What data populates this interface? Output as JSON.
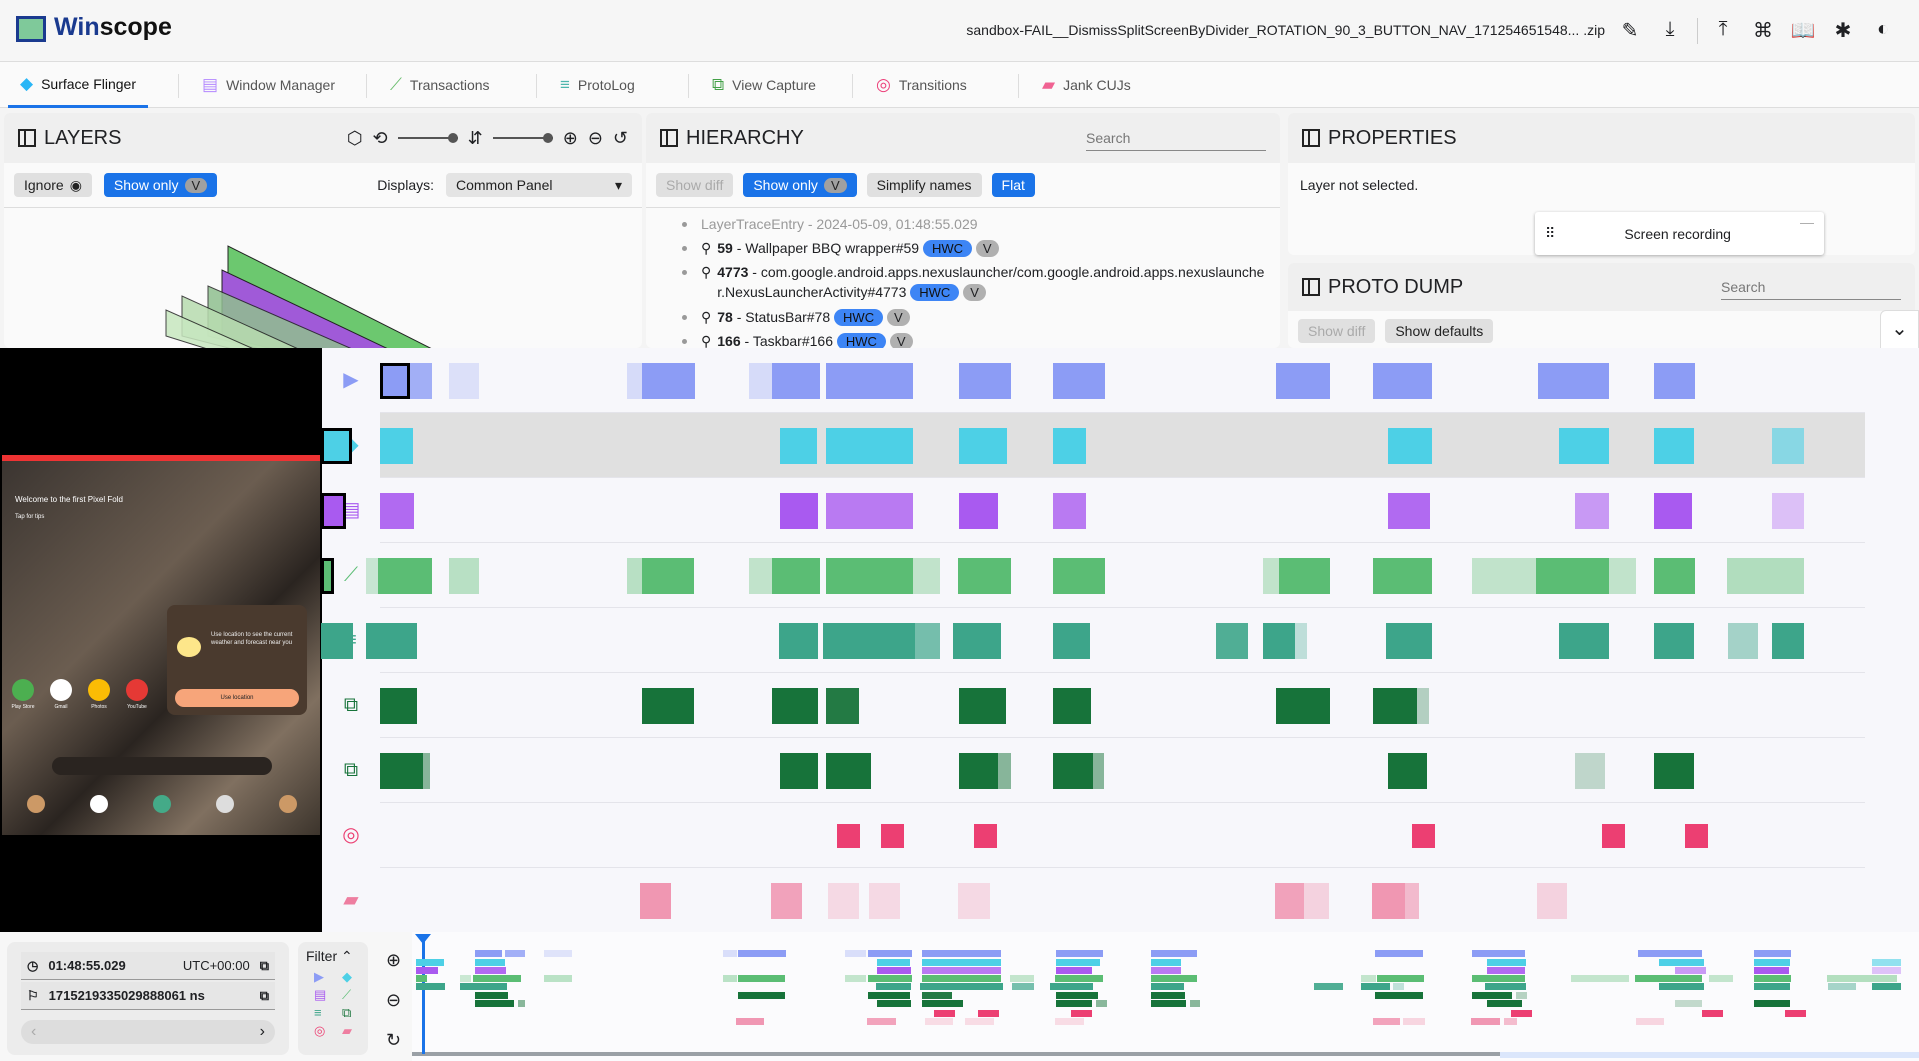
{
  "header": {
    "title_a": "Win",
    "title_b": "scope",
    "filename": "sandbox-FAIL__DismissSplitScreenByDivider_ROTATION_90_3_BUTTON_NAV_171254651548... .zip",
    "icons": [
      "edit-icon",
      "download-icon",
      "upload-icon",
      "shortcut-icon",
      "docs-icon",
      "bug-icon",
      "theme-icon"
    ]
  },
  "tabs": [
    {
      "label": "Surface Flinger",
      "icon": "layers-icon",
      "color": "#29b6f6"
    },
    {
      "label": "Window Manager",
      "icon": "window-icon",
      "color": "#b388ff"
    },
    {
      "label": "Transactions",
      "icon": "chart-icon",
      "color": "#66bb6a"
    },
    {
      "label": "ProtoLog",
      "icon": "list-icon",
      "color": "#4db6ac"
    },
    {
      "label": "View Capture",
      "icon": "copy-icon",
      "color": "#43a047"
    },
    {
      "label": "Transitions",
      "icon": "transitions-icon",
      "color": "#ec407a"
    },
    {
      "label": "Jank CUJs",
      "icon": "label-icon",
      "color": "#f06292"
    }
  ],
  "layers": {
    "title": "LAYERS",
    "ignore": "Ignore",
    "show_only": "Show only",
    "v": "V",
    "displays_label": "Displays:",
    "display_value": "Common Panel"
  },
  "hierarchy": {
    "title": "HIERARCHY",
    "search_placeholder": "Search",
    "show_diff": "Show diff",
    "show_only": "Show only",
    "v": "V",
    "simplify": "Simplify names",
    "flat": "Flat",
    "root": "LayerTraceEntry - 2024-05-09, 01:48:55.029",
    "items": [
      {
        "id": "59",
        "name": "Wallpaper BBQ wrapper#59"
      },
      {
        "id": "4773",
        "name": "com.google.android.apps.nexuslauncher/com.google.android.apps.nexuslauncher.NexusLauncherActivity#4773"
      },
      {
        "id": "78",
        "name": "StatusBar#78"
      },
      {
        "id": "166",
        "name": "Taskbar#166"
      }
    ],
    "hwc": "HWC",
    "vbadge": "V"
  },
  "properties": {
    "title": "PROPERTIES",
    "empty": "Layer not selected.",
    "screen_recording": "Screen recording"
  },
  "proto_dump": {
    "title": "PROTO DUMP",
    "search_placeholder": "Search",
    "show_diff": "Show diff",
    "show_defaults": "Show defaults"
  },
  "device": {
    "welcome": "Welcome to the first Pixel Fold",
    "tips": "Tap for tips",
    "weather": "Use location to see the current weather and forecast near you",
    "use_location": "Use location",
    "apps": [
      "Play Store",
      "Gmail",
      "Photos",
      "YouTube"
    ]
  },
  "timeline": {
    "rows": [
      {
        "icon": "video-icon",
        "color": "#8c9cf5"
      },
      {
        "icon": "layers-icon",
        "color": "#4dd0e6"
      },
      {
        "icon": "window-icon",
        "color": "#a95af0"
      },
      {
        "icon": "transactions-icon",
        "color": "#5bbd74"
      },
      {
        "icon": "protolog-icon",
        "color": "#3da58a"
      },
      {
        "icon": "viewcapture-icon",
        "color": "#17733a"
      },
      {
        "icon": "viewcapture-icon",
        "color": "#17733a"
      },
      {
        "icon": "transitions-icon",
        "color": "#ec3f72"
      },
      {
        "icon": "jank-icon",
        "color": "#ee7ea0"
      }
    ],
    "time": "01:48:55.029",
    "timezone": "UTC+00:00",
    "ns": "1715219335029888061 ns",
    "filter": "Filter"
  }
}
